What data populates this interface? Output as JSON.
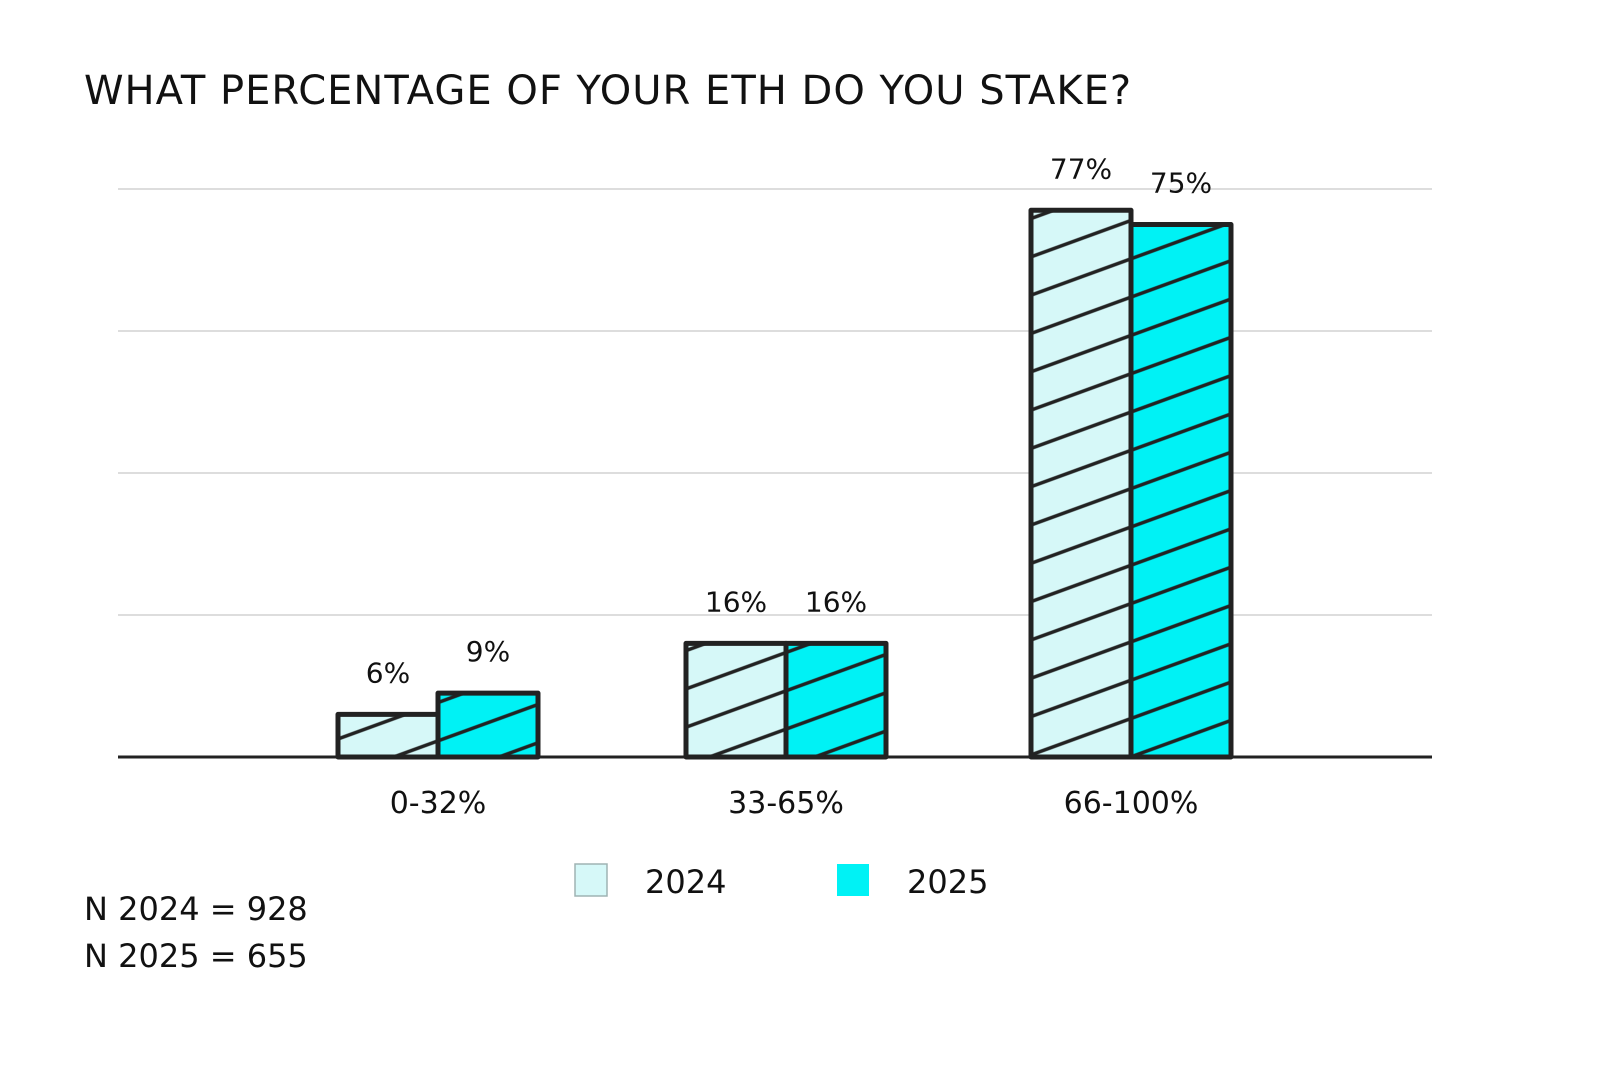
{
  "chart_data": {
    "type": "bar",
    "title": "WHAT PERCENTAGE OF YOUR ETH DO YOU STAKE?",
    "categories": [
      "0-32%",
      "33-65%",
      "66-100%"
    ],
    "series": [
      {
        "name": "2024",
        "values": [
          6,
          16,
          77
        ],
        "labels": [
          "6%",
          "16%",
          "77%"
        ],
        "color": "#d6f8f8"
      },
      {
        "name": "2025",
        "values": [
          9,
          16,
          75
        ],
        "labels": [
          "9%",
          "16%",
          "75%"
        ],
        "color": "#00f2f5"
      }
    ],
    "ylim": [
      0,
      80
    ],
    "grid": true,
    "legend": "bottom-center",
    "xlabel": "",
    "ylabel": ""
  },
  "notes": {
    "n2024": "N 2024 = 928",
    "n2025": "N 2025 = 655"
  },
  "colors": {
    "outline": "#222222",
    "grid": "#dddddd",
    "hatch": "#222222"
  }
}
